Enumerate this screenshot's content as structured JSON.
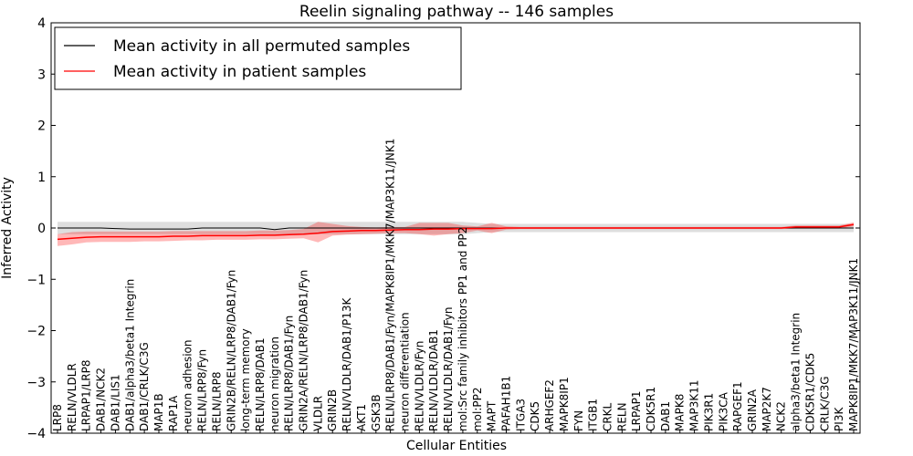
{
  "chart_data": {
    "type": "line",
    "title": "Reelin signaling pathway -- 146 samples",
    "xlabel": "Cellular Entities",
    "ylabel": "Inferred Activity",
    "ylim": [
      -4,
      4
    ],
    "yticks": [
      -4,
      -3,
      -2,
      -1,
      0,
      1,
      2,
      3,
      4
    ],
    "ytick_labels": [
      "−4",
      "−3",
      "−2",
      "−1",
      "0",
      "1",
      "2",
      "3",
      "4"
    ],
    "legend_position": "upper-left",
    "categories": [
      "LRP8",
      "RELN/VLDLR",
      "LRPAP1/LRP8",
      "DAB1/NCK2",
      "DAB1/LIS1",
      "DAB1/alpha3/beta1 Integrin",
      "DAB1/CRLK/C3G",
      "MAP1B",
      "RAP1A",
      "neuron adhesion",
      "RELN/LRP8/Fyn",
      "RELN/LRP8",
      "GRIN2B/RELN/LRP8/DAB1/Fyn",
      "long-term memory",
      "RELN/LRP8/DAB1",
      "neuron migration",
      "RELN/LRP8/DAB1/Fyn",
      "GRIN2A/RELN/LRP8/DAB1/Fyn",
      "VLDLR",
      "GRIN2B",
      "RELN/VLDLR/DAB1/P13K",
      "AKT1",
      "GSK3B",
      "RELN/LRP8/DAB1/Fyn/MAPK8IP1/MKK7/MAP3K11/JNK1",
      "neuron differentiation",
      "RELN/VLDLR/Fyn",
      "RELN/VLDLR/DAB1",
      "RELN/VLDLR/DAB1/Fyn",
      "mol:Src family inhibitors PP1 and PP2",
      "mol:PP2",
      "MAPT",
      "PAFAH1B1",
      "ITGA3",
      "CDK5",
      "ARHGEF2",
      "MAPK8IP1",
      "FYN",
      "ITGB1",
      "CRKL",
      "RELN",
      "LRPAP1",
      "CDK5R1",
      "DAB1",
      "MAPK8",
      "MAP3K11",
      "PIK3R1",
      "PIK3CA",
      "RAPGEF1",
      "GRIN2A",
      "MAP2K7",
      "NCK2",
      "alpha3/beta1 Integrin",
      "CDK5R1/CDK5",
      "CRLK/C3G",
      "PI3K",
      "MAPK8IP1/MKK7/MAP3K11/JNK1"
    ],
    "series": [
      {
        "name": "Mean activity in all permuted samples",
        "color": "#000000",
        "values": [
          0.0,
          0.0,
          0.0,
          0.0,
          -0.01,
          -0.02,
          -0.02,
          -0.02,
          -0.02,
          -0.02,
          0.0,
          0.0,
          0.0,
          0.0,
          0.0,
          -0.03,
          0.0,
          0.0,
          0.0,
          0.0,
          0.0,
          0.0,
          0.0,
          0.0,
          0.0,
          0.0,
          0.0,
          0.0,
          0.0,
          0.0,
          0.0,
          0.0,
          0.0,
          0.0,
          0.0,
          0.0,
          0.0,
          0.0,
          0.0,
          0.0,
          0.0,
          0.0,
          0.0,
          0.0,
          0.0,
          0.0,
          0.0,
          0.0,
          0.0,
          0.0,
          0.0,
          0.0,
          0.0,
          0.0,
          0.0,
          0.0
        ],
        "lower": [
          -0.12,
          -0.12,
          -0.12,
          -0.12,
          -0.12,
          -0.12,
          -0.12,
          -0.12,
          -0.12,
          -0.12,
          -0.12,
          -0.12,
          -0.12,
          -0.12,
          -0.12,
          -0.12,
          -0.12,
          -0.12,
          -0.12,
          -0.12,
          -0.12,
          -0.12,
          -0.12,
          -0.12,
          -0.12,
          -0.12,
          -0.12,
          -0.12,
          -0.12,
          -0.1,
          -0.08,
          -0.08,
          -0.08,
          -0.08,
          -0.08,
          -0.08,
          -0.08,
          -0.08,
          -0.08,
          -0.08,
          -0.08,
          -0.08,
          -0.08,
          -0.08,
          -0.08,
          -0.08,
          -0.08,
          -0.08,
          -0.08,
          -0.08,
          -0.08,
          -0.08,
          -0.08,
          -0.08,
          -0.08,
          -0.08
        ],
        "upper": [
          0.12,
          0.12,
          0.12,
          0.12,
          0.12,
          0.12,
          0.12,
          0.12,
          0.12,
          0.12,
          0.12,
          0.12,
          0.12,
          0.12,
          0.12,
          0.12,
          0.12,
          0.12,
          0.12,
          0.12,
          0.12,
          0.12,
          0.12,
          0.12,
          0.12,
          0.12,
          0.12,
          0.12,
          0.12,
          0.1,
          0.08,
          0.08,
          0.08,
          0.08,
          0.08,
          0.08,
          0.08,
          0.08,
          0.08,
          0.08,
          0.08,
          0.08,
          0.08,
          0.08,
          0.08,
          0.08,
          0.08,
          0.08,
          0.08,
          0.08,
          0.08,
          0.08,
          0.08,
          0.08,
          0.08,
          0.08
        ]
      },
      {
        "name": "Mean activity in patient samples",
        "color": "#ff0000",
        "values": [
          -0.22,
          -0.2,
          -0.18,
          -0.17,
          -0.17,
          -0.17,
          -0.17,
          -0.17,
          -0.16,
          -0.16,
          -0.15,
          -0.15,
          -0.15,
          -0.15,
          -0.14,
          -0.14,
          -0.13,
          -0.12,
          -0.1,
          -0.07,
          -0.06,
          -0.05,
          -0.05,
          -0.04,
          -0.03,
          -0.03,
          -0.02,
          -0.02,
          -0.01,
          -0.01,
          -0.01,
          0.0,
          0.0,
          0.0,
          0.0,
          0.0,
          0.0,
          0.0,
          0.0,
          0.0,
          0.0,
          0.0,
          0.0,
          0.0,
          0.0,
          0.0,
          0.0,
          0.0,
          0.0,
          0.0,
          0.0,
          0.02,
          0.02,
          0.02,
          0.02,
          0.07
        ],
        "lower": [
          -0.35,
          -0.32,
          -0.28,
          -0.27,
          -0.27,
          -0.27,
          -0.26,
          -0.26,
          -0.25,
          -0.24,
          -0.24,
          -0.23,
          -0.23,
          -0.23,
          -0.22,
          -0.22,
          -0.21,
          -0.2,
          -0.28,
          -0.15,
          -0.13,
          -0.12,
          -0.11,
          -0.1,
          -0.1,
          -0.12,
          -0.15,
          -0.12,
          -0.1,
          -0.05,
          -0.1,
          -0.03,
          -0.02,
          -0.02,
          -0.02,
          -0.02,
          -0.02,
          -0.02,
          -0.02,
          -0.02,
          -0.02,
          -0.02,
          -0.02,
          -0.02,
          -0.02,
          -0.02,
          -0.02,
          -0.02,
          -0.02,
          -0.02,
          -0.02,
          -0.01,
          -0.01,
          -0.01,
          -0.01,
          0.03
        ],
        "upper": [
          -0.12,
          -0.08,
          -0.07,
          -0.07,
          -0.07,
          -0.07,
          -0.07,
          -0.07,
          -0.06,
          -0.06,
          -0.06,
          -0.06,
          -0.06,
          -0.06,
          -0.05,
          -0.05,
          -0.04,
          -0.02,
          0.12,
          0.08,
          0.04,
          0.02,
          0.01,
          0.02,
          0.02,
          0.1,
          0.1,
          0.1,
          0.05,
          0.03,
          0.1,
          0.03,
          0.02,
          0.02,
          0.02,
          0.02,
          0.02,
          0.02,
          0.02,
          0.02,
          0.02,
          0.02,
          0.02,
          0.02,
          0.02,
          0.02,
          0.02,
          0.02,
          0.02,
          0.02,
          0.02,
          0.05,
          0.05,
          0.05,
          0.05,
          0.11
        ]
      }
    ]
  }
}
